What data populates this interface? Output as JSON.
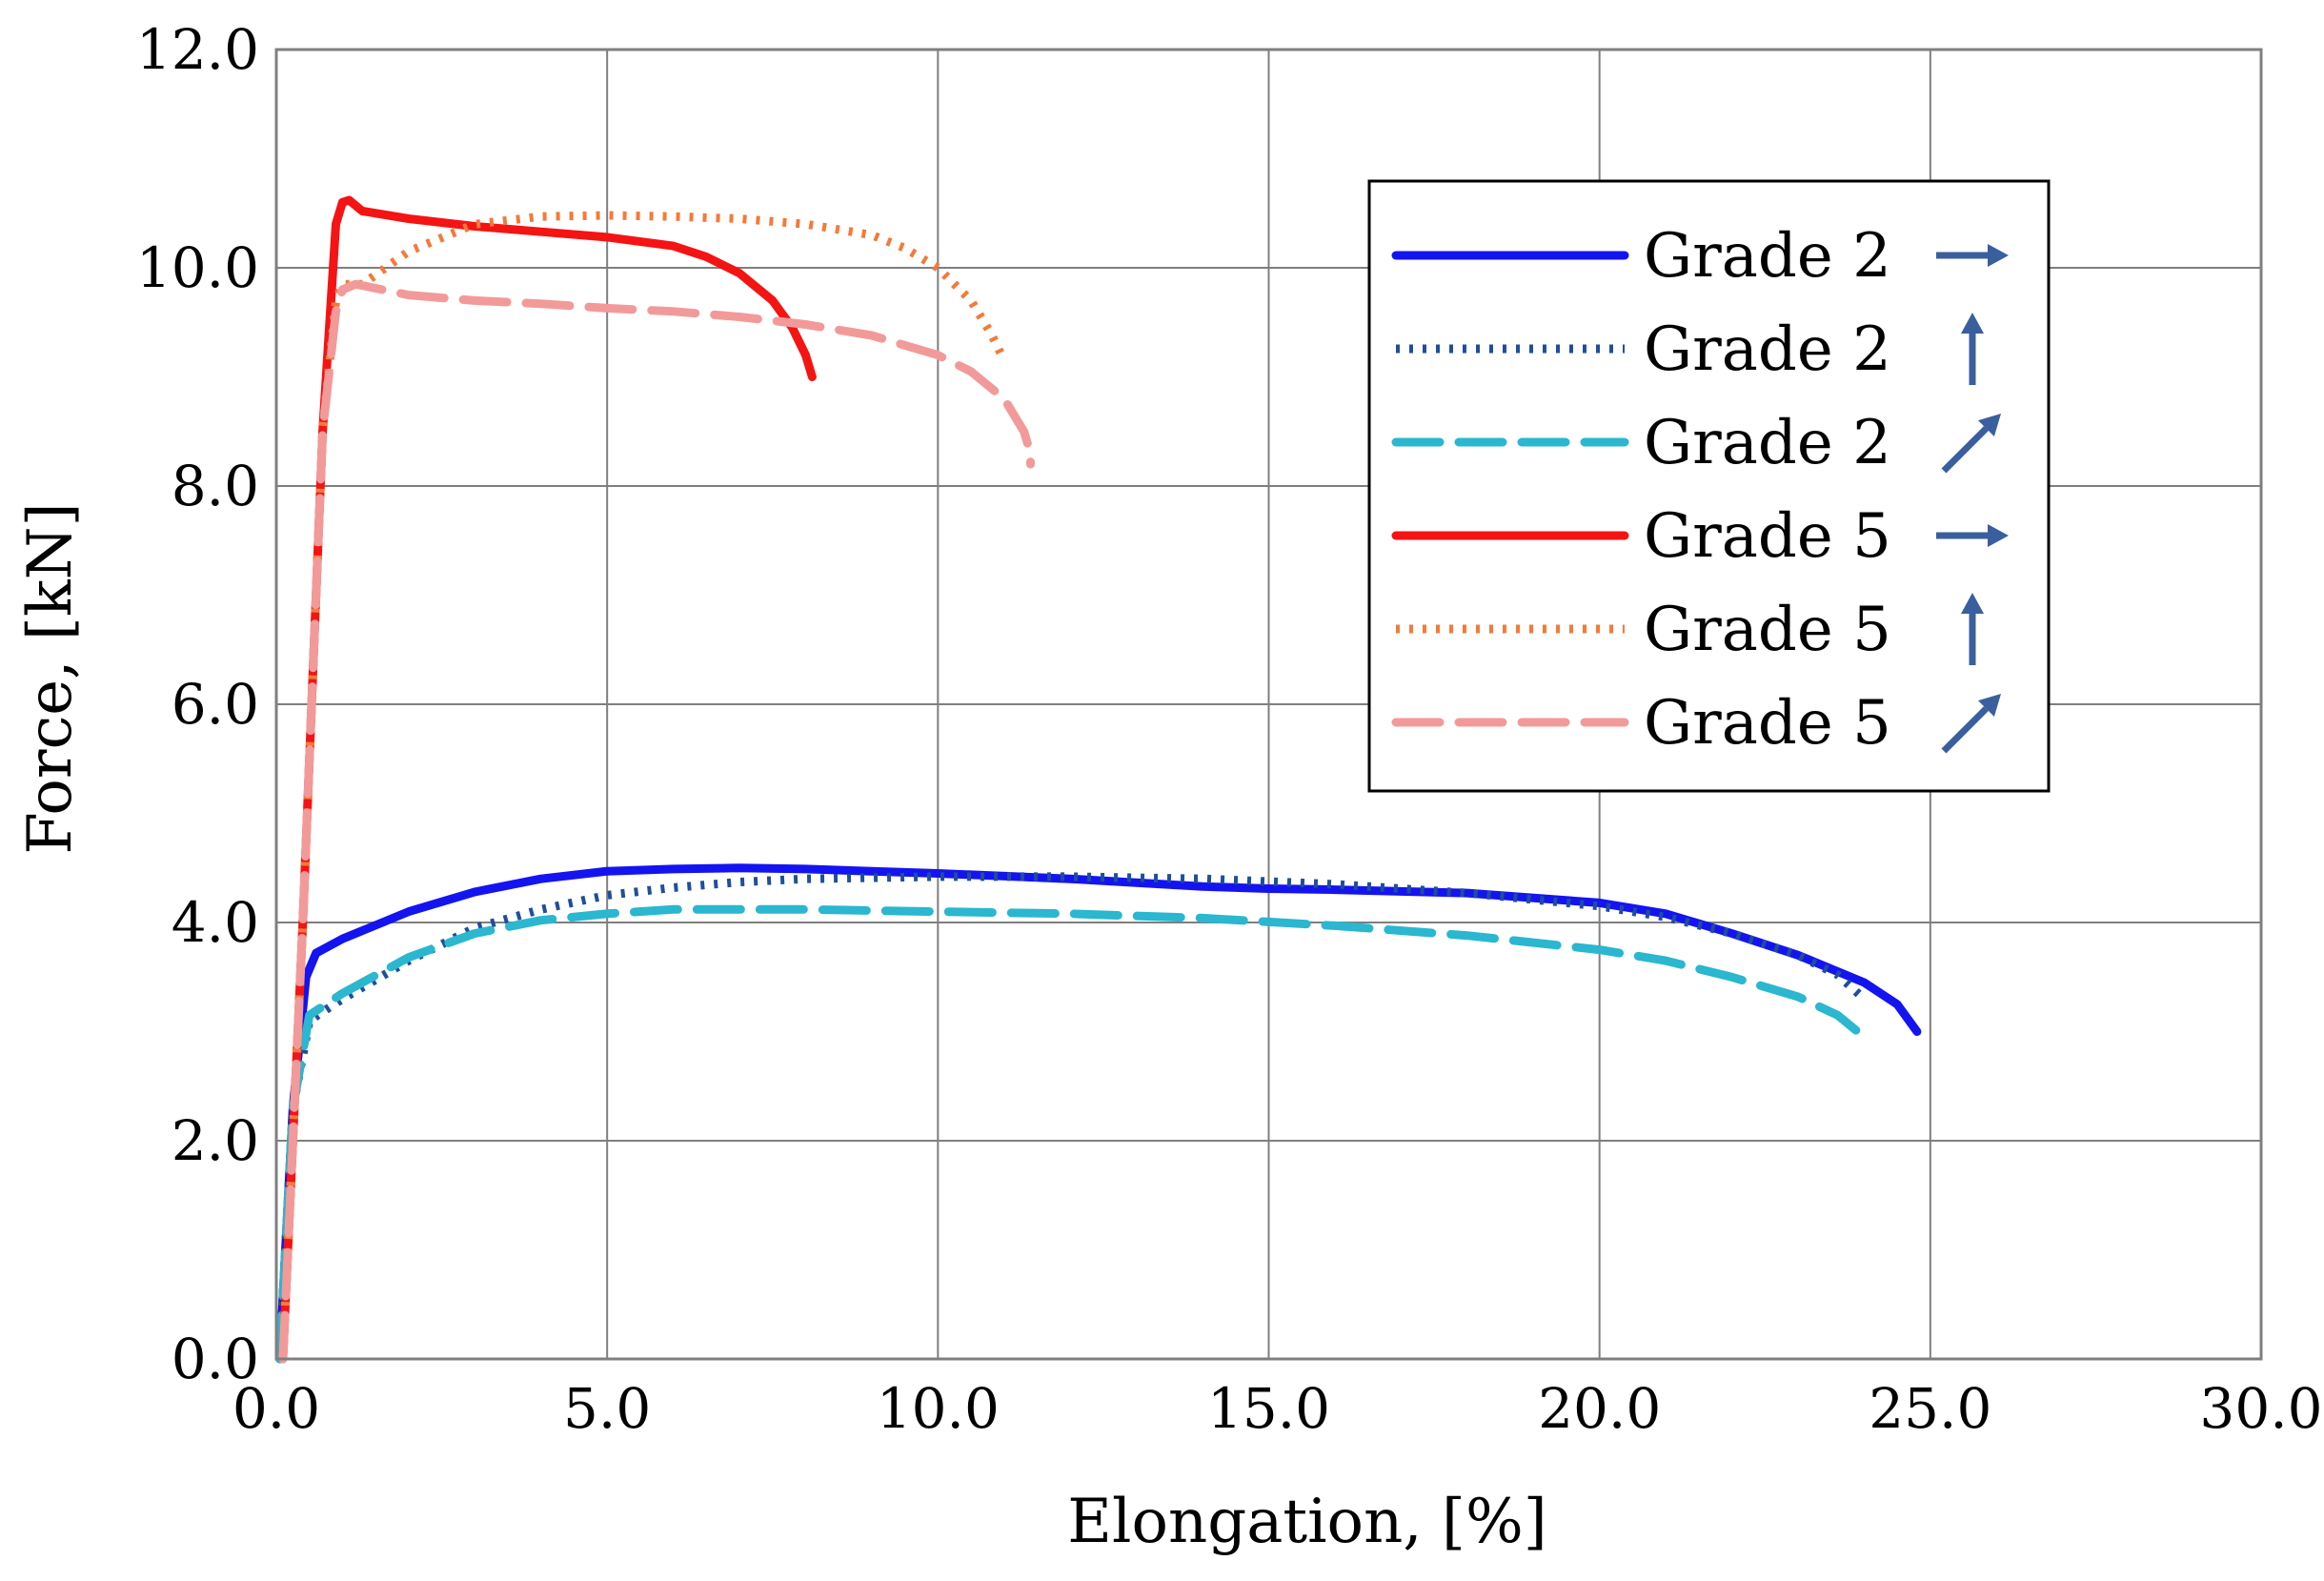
{
  "chart_data": {
    "type": "line",
    "title": "",
    "xlabel": "Elongation, [%]",
    "ylabel": "Force, [kN]",
    "xlim": [
      0,
      30
    ],
    "ylim": [
      0,
      12
    ],
    "grid": true,
    "legend_position": "top-right",
    "x_tick_labels": [
      "0.0",
      "5.0",
      "10.0",
      "15.0",
      "20.0",
      "25.0",
      "30.0"
    ],
    "y_tick_labels": [
      "0.0",
      "2.0",
      "4.0",
      "6.0",
      "8.0",
      "10.0",
      "12.0"
    ],
    "series": [
      {
        "name": "Grade 2",
        "direction": "horizontal",
        "arrow": "→",
        "color": "#1414f0",
        "style": "solid",
        "x": [
          0.05,
          0.25,
          0.45,
          0.6,
          1.0,
          2.0,
          3.0,
          4.0,
          5.0,
          6.0,
          7.0,
          8.0,
          9.0,
          10.0,
          12.0,
          14.0,
          15.0,
          16.0,
          18.0,
          20.0,
          21.0,
          22.0,
          23.0,
          24.0,
          24.5,
          24.8
        ],
        "y": [
          0.0,
          2.3,
          3.5,
          3.72,
          3.85,
          4.1,
          4.28,
          4.4,
          4.47,
          4.49,
          4.5,
          4.49,
          4.47,
          4.45,
          4.4,
          4.33,
          4.31,
          4.3,
          4.27,
          4.18,
          4.08,
          3.9,
          3.7,
          3.45,
          3.25,
          3.0
        ]
      },
      {
        "name": "Grade 2",
        "direction": "vertical",
        "arrow": "↑",
        "color": "#1f4e9c",
        "style": "dotted",
        "x": [
          0.05,
          0.25,
          0.5,
          1.0,
          2.0,
          3.0,
          4.0,
          5.0,
          6.0,
          7.0,
          8.0,
          10.0,
          12.0,
          14.0,
          16.0,
          18.0,
          20.0,
          21.0,
          22.0,
          23.0,
          23.6,
          24.0
        ],
        "y": [
          0.0,
          2.3,
          3.1,
          3.3,
          3.65,
          3.95,
          4.12,
          4.25,
          4.32,
          4.37,
          4.4,
          4.42,
          4.42,
          4.4,
          4.35,
          4.27,
          4.15,
          4.05,
          3.9,
          3.7,
          3.52,
          3.3
        ]
      },
      {
        "name": "Grade 2",
        "direction": "diagonal",
        "arrow": "↗",
        "color": "#2ab7cf",
        "style": "dashed",
        "x": [
          0.05,
          0.25,
          0.5,
          1.0,
          2.0,
          3.0,
          4.0,
          5.0,
          6.0,
          8.0,
          10.0,
          12.0,
          14.0,
          16.0,
          18.0,
          20.0,
          21.0,
          22.0,
          23.0,
          23.6,
          23.9,
          24.0
        ],
        "y": [
          0.0,
          2.3,
          3.15,
          3.35,
          3.68,
          3.9,
          4.02,
          4.08,
          4.12,
          4.12,
          4.1,
          4.08,
          4.04,
          3.97,
          3.88,
          3.75,
          3.65,
          3.5,
          3.32,
          3.15,
          3.0,
          2.88
        ]
      },
      {
        "name": "Grade 5",
        "direction": "horizontal",
        "arrow": "→",
        "color": "#f41414",
        "style": "solid",
        "x": [
          0.1,
          0.4,
          0.7,
          0.9,
          1.0,
          1.1,
          1.3,
          2.0,
          3.0,
          4.0,
          5.0,
          6.0,
          6.5,
          7.0,
          7.5,
          7.8,
          8.0,
          8.1
        ],
        "y": [
          0.0,
          4.0,
          8.5,
          10.4,
          10.6,
          10.62,
          10.52,
          10.45,
          10.38,
          10.33,
          10.28,
          10.2,
          10.1,
          9.95,
          9.7,
          9.45,
          9.2,
          9.0
        ]
      },
      {
        "name": "Grade 5",
        "direction": "vertical",
        "arrow": "↑",
        "color": "#f47a3a",
        "style": "dotted",
        "x": [
          0.1,
          0.4,
          0.7,
          0.9,
          1.0,
          1.3,
          2.0,
          3.0,
          4.0,
          5.0,
          6.0,
          7.0,
          8.0,
          9.0,
          9.5,
          10.0,
          10.5,
          10.8,
          11.0
        ],
        "y": [
          0.0,
          4.0,
          8.5,
          9.7,
          9.85,
          9.85,
          10.15,
          10.4,
          10.47,
          10.48,
          10.47,
          10.45,
          10.4,
          10.3,
          10.18,
          10.0,
          9.7,
          9.4,
          9.15
        ]
      },
      {
        "name": "Grade 5",
        "direction": "diagonal",
        "arrow": "↗",
        "color": "#f29a9a",
        "style": "dashed",
        "x": [
          0.1,
          0.4,
          0.7,
          0.9,
          1.0,
          1.2,
          2.0,
          3.0,
          4.0,
          5.0,
          6.0,
          7.0,
          8.0,
          9.0,
          10.0,
          10.5,
          11.0,
          11.3,
          11.4,
          11.4
        ],
        "y": [
          0.0,
          4.0,
          8.5,
          9.6,
          9.8,
          9.85,
          9.75,
          9.7,
          9.67,
          9.63,
          9.6,
          9.55,
          9.48,
          9.38,
          9.2,
          9.05,
          8.8,
          8.5,
          8.3,
          8.2
        ]
      }
    ]
  }
}
